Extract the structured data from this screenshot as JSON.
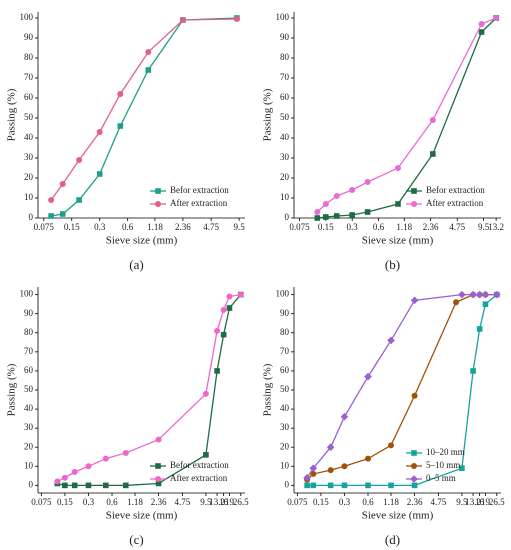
{
  "chart_data": [
    {
      "type": "line",
      "label": "(a)",
      "x_label": "Sieve size (mm)",
      "y_label": "Passing (%)",
      "xscale": "log",
      "xlim": [
        0.065,
        11
      ],
      "xticks": [
        0.075,
        0.15,
        0.3,
        0.6,
        1.18,
        2.36,
        4.75,
        9.5
      ],
      "ylim": [
        0,
        103
      ],
      "yticks": [
        0,
        10,
        20,
        30,
        40,
        50,
        60,
        70,
        80,
        90,
        100
      ],
      "legend": "lower-right",
      "series": [
        {
          "name": "Befor extraction",
          "color": "#1f9e89",
          "marker": "square",
          "x": [
            0.09,
            0.12,
            0.18,
            0.3,
            0.5,
            1,
            2.36,
            9
          ],
          "values": [
            1,
            2,
            9,
            22,
            46,
            74,
            99,
            100
          ]
        },
        {
          "name": "After extraction",
          "color": "#e0608a",
          "marker": "circle",
          "x": [
            0.09,
            0.12,
            0.18,
            0.3,
            0.5,
            1,
            2.36,
            9
          ],
          "values": [
            9,
            17,
            29,
            43,
            62,
            83,
            99,
            99.5
          ]
        }
      ]
    },
    {
      "type": "line",
      "label": "(b)",
      "x_label": "Sieve size (mm)",
      "y_label": "Passing (%)",
      "xscale": "log",
      "xlim": [
        0.065,
        15
      ],
      "xticks": [
        0.075,
        0.15,
        0.3,
        0.6,
        1.18,
        2.36,
        4.75,
        9.5,
        13.2
      ],
      "ylim": [
        0,
        103
      ],
      "yticks": [
        0,
        10,
        20,
        30,
        40,
        50,
        60,
        70,
        80,
        90,
        100
      ],
      "legend": "lower-right",
      "series": [
        {
          "name": "Befor extraction",
          "color": "#1e6b45",
          "marker": "square",
          "x": [
            0.12,
            0.15,
            0.2,
            0.3,
            0.45,
            1,
            2.5,
            9,
            13.2
          ],
          "values": [
            0,
            0.5,
            1,
            1.5,
            3,
            7,
            32,
            93,
            100
          ]
        },
        {
          "name": "After extraction",
          "color": "#e86ad6",
          "marker": "circle",
          "x": [
            0.12,
            0.15,
            0.2,
            0.3,
            0.45,
            1,
            2.5,
            9,
            13.2
          ],
          "values": [
            3,
            7,
            11,
            14,
            18,
            25,
            49,
            97,
            100
          ]
        }
      ]
    },
    {
      "type": "line",
      "label": "(c)",
      "x_label": "Sieve size (mm)",
      "y_label": "Passing (%)",
      "xscale": "log",
      "xlim": [
        0.068,
        30
      ],
      "xticks": [
        0.075,
        0.15,
        0.3,
        0.6,
        1.18,
        2.36,
        4.75,
        9.5,
        13.2,
        16,
        19,
        26.5
      ],
      "ylim": [
        -4,
        104
      ],
      "yticks": [
        0,
        10,
        20,
        30,
        40,
        50,
        60,
        70,
        80,
        90,
        100
      ],
      "legend": "lower-right",
      "series": [
        {
          "name": "Befor extraction",
          "color": "#1e6b45",
          "marker": "square",
          "x": [
            0.12,
            0.15,
            0.2,
            0.3,
            0.5,
            0.9,
            2.36,
            9.5,
            13.2,
            16,
            19,
            26.5
          ],
          "values": [
            1,
            0,
            0,
            0,
            0,
            0,
            1,
            16,
            60,
            79,
            93,
            100
          ]
        },
        {
          "name": "After extraction",
          "color": "#ee66cc",
          "marker": "circle",
          "x": [
            0.12,
            0.15,
            0.2,
            0.3,
            0.5,
            0.9,
            2.36,
            9.5,
            13.2,
            16,
            19,
            26.5
          ],
          "values": [
            2,
            4,
            7,
            10,
            14,
            17,
            24,
            48,
            81,
            92,
            99,
            100
          ]
        }
      ]
    },
    {
      "type": "line",
      "label": "(d)",
      "x_label": "Sieve size (mm)",
      "y_label": "Passing (%)",
      "xscale": "log",
      "xlim": [
        0.068,
        30
      ],
      "xticks": [
        0.075,
        0.15,
        0.3,
        0.6,
        1.18,
        2.36,
        4.75,
        9.5,
        13.2,
        16,
        19,
        26.5
      ],
      "ylim": [
        -4,
        104
      ],
      "yticks": [
        0,
        10,
        20,
        30,
        40,
        50,
        60,
        70,
        80,
        90,
        100
      ],
      "legend": "lower-right",
      "series": [
        {
          "name": "10–20 mm",
          "color": "#17a2a0",
          "marker": "square",
          "x": [
            0.1,
            0.12,
            0.2,
            0.3,
            0.6,
            1.18,
            2.36,
            9.5,
            13.2,
            16,
            19,
            26.5
          ],
          "values": [
            0,
            0,
            0,
            0,
            0,
            0,
            0,
            9,
            60,
            82,
            95,
            100
          ]
        },
        {
          "name": "5–10 mm",
          "color": "#a0520a",
          "marker": "circle",
          "x": [
            0.1,
            0.12,
            0.2,
            0.3,
            0.6,
            1.18,
            2.36,
            8,
            13.2,
            16,
            19,
            26.5
          ],
          "values": [
            3,
            6,
            8,
            10,
            14,
            21,
            47,
            96,
            100,
            100,
            100,
            100
          ]
        },
        {
          "name": "0–5 mm",
          "color": "#9a5fd0",
          "marker": "diamond",
          "x": [
            0.1,
            0.12,
            0.2,
            0.3,
            0.6,
            1.18,
            2.36,
            9.5,
            13.2,
            16,
            19,
            26.5
          ],
          "values": [
            4,
            9,
            20,
            36,
            57,
            76,
            97,
            100,
            100,
            100,
            100,
            100
          ]
        }
      ]
    }
  ]
}
